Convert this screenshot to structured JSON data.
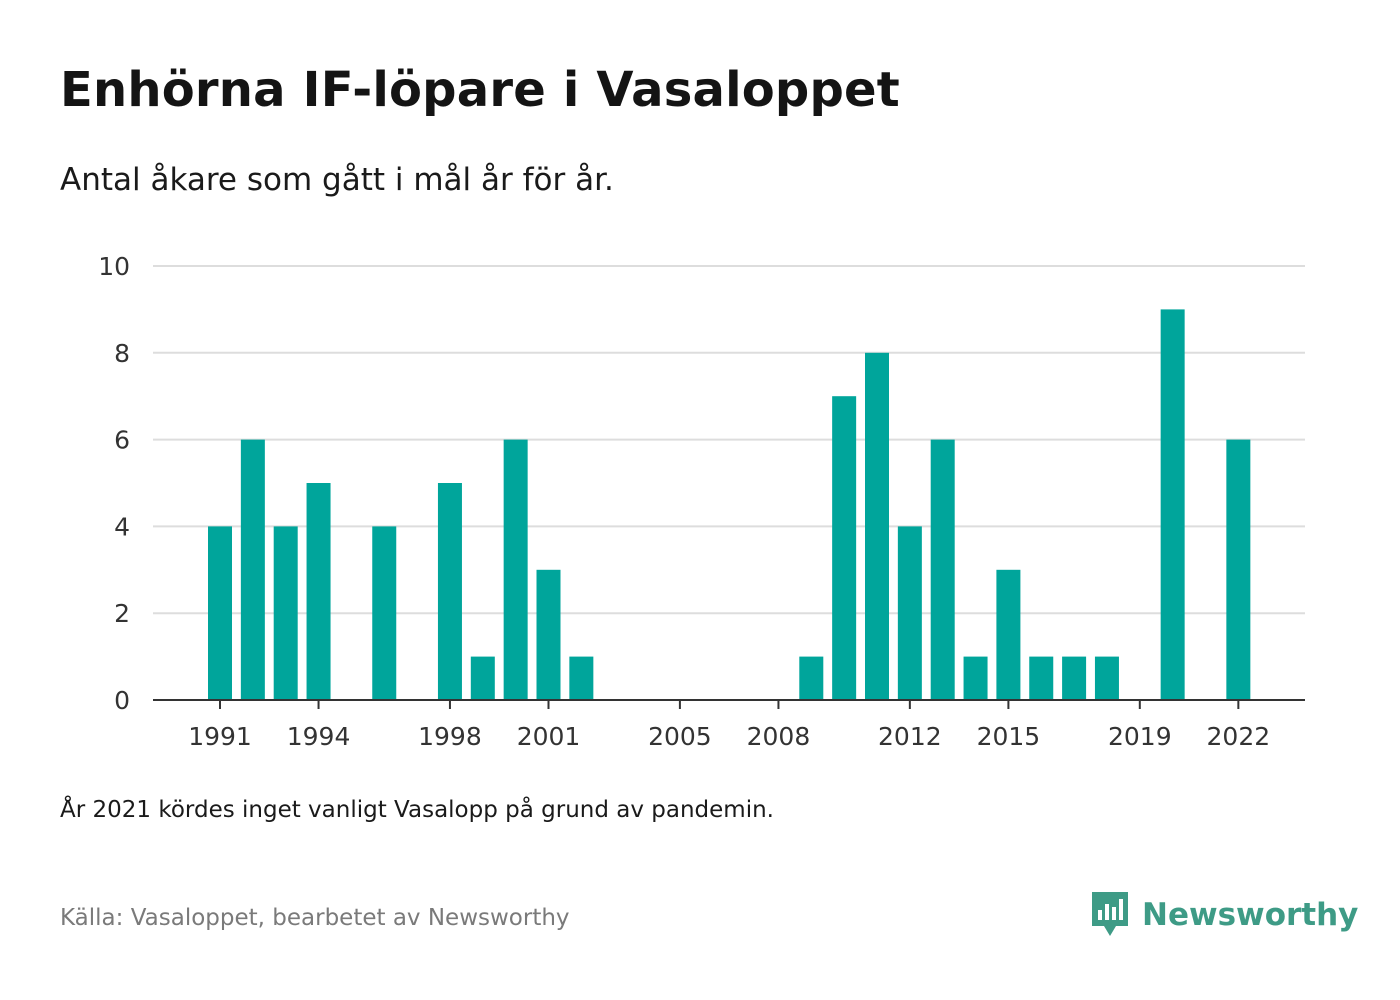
{
  "header": {
    "title": "Enhörna IF-löpare i Vasaloppet",
    "subtitle": "Antal åkare som gått i mål år för år."
  },
  "footer": {
    "note": "År 2021 kördes inget vanligt Vasalopp på grund av pandemin.",
    "source": "Källa: Vasaloppet, bearbetet av Newsworthy",
    "brand": "Newsworthy",
    "brand_icon": "newsworthy-logo-icon"
  },
  "colors": {
    "bar": "#00a59b",
    "grid": "#dddddd",
    "axis": "#333333",
    "brand": "#3e9b86"
  },
  "chart_data": {
    "type": "bar",
    "categories": [
      1991,
      1992,
      1993,
      1994,
      1995,
      1996,
      1997,
      1998,
      1999,
      2000,
      2001,
      2002,
      2003,
      2004,
      2005,
      2006,
      2007,
      2008,
      2009,
      2010,
      2011,
      2012,
      2013,
      2014,
      2015,
      2016,
      2017,
      2018,
      2019,
      2020,
      2021,
      2022
    ],
    "values": [
      4,
      6,
      4,
      5,
      0,
      4,
      0,
      5,
      1,
      6,
      3,
      1,
      0,
      0,
      0,
      0,
      0,
      0,
      1,
      7,
      8,
      4,
      6,
      1,
      3,
      1,
      1,
      1,
      0,
      9,
      0,
      6
    ],
    "x_tick_labels": [
      "1991",
      "1994",
      "1998",
      "2001",
      "2005",
      "2008",
      "2012",
      "2015",
      "2019",
      "2022"
    ],
    "y_ticks": [
      0,
      2,
      4,
      6,
      8,
      10
    ],
    "ylim": [
      0,
      10
    ],
    "xlabel": "",
    "ylabel": "",
    "grid": true,
    "legend": "none"
  }
}
